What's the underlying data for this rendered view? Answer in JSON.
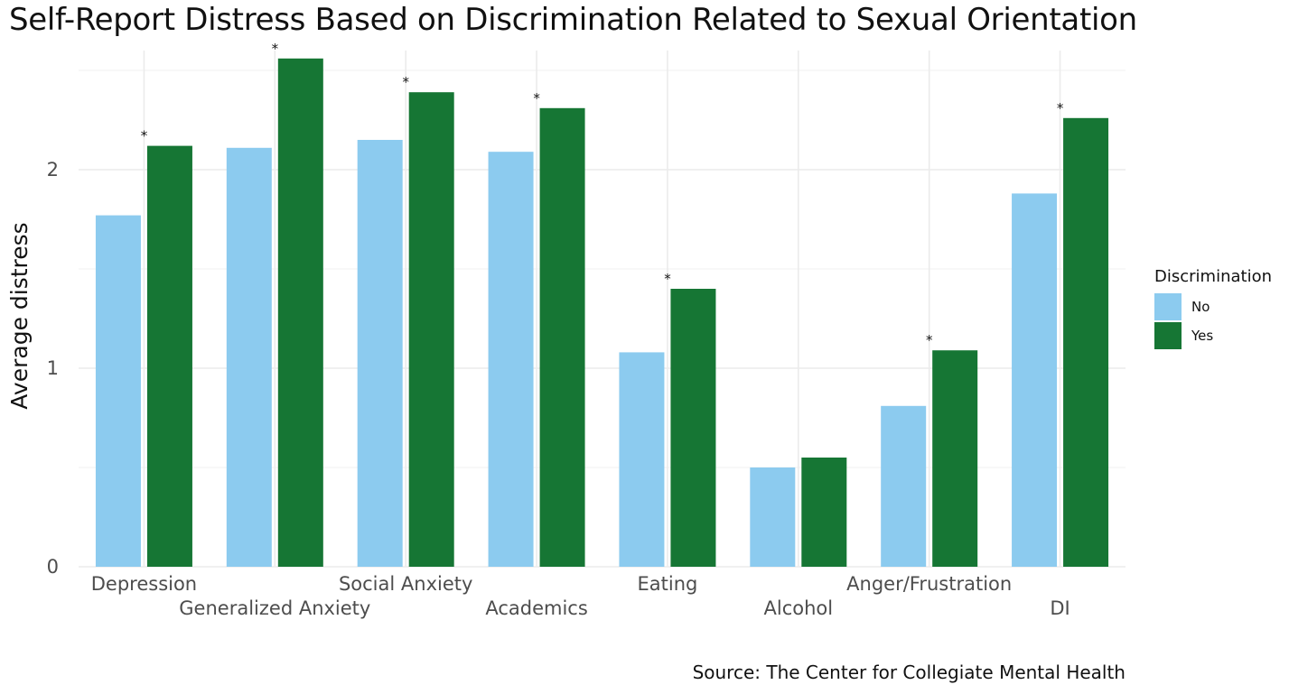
{
  "chart_data": {
    "type": "bar",
    "title": "Self-Report Distress Based on Discrimination Related to Sexual Orientation",
    "caption": "Source: The Center for Collegiate Mental Health",
    "xlabel": "",
    "ylabel": "Average distress",
    "ylim": [
      0,
      2.6
    ],
    "yticks": [
      0,
      1,
      2
    ],
    "grid": true,
    "categories": [
      "Depression",
      "Generalized Anxiety",
      "Social Anxiety",
      "Academics",
      "Eating",
      "Alcohol",
      "Anger/Frustration",
      "DI"
    ],
    "series": [
      {
        "name": "No",
        "color": "#8ccbef",
        "values": [
          1.77,
          2.11,
          2.15,
          2.09,
          1.08,
          0.5,
          0.81,
          1.88
        ]
      },
      {
        "name": "Yes",
        "color": "#167634",
        "values": [
          2.12,
          2.56,
          2.39,
          2.31,
          1.4,
          0.55,
          1.09,
          2.26
        ]
      }
    ],
    "significance_marker": "*",
    "significant": [
      true,
      true,
      true,
      true,
      true,
      false,
      true,
      true
    ],
    "legend": {
      "title": "Discrimination",
      "position": "right"
    }
  }
}
